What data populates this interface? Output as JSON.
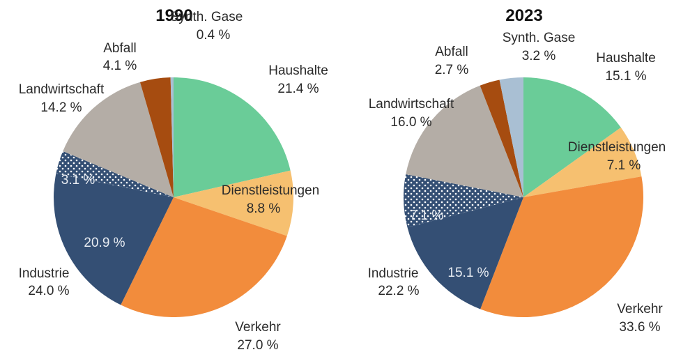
{
  "chart_data": [
    {
      "type": "pie",
      "title": "1990",
      "categories": [
        "Haushalte",
        "Dienstleistungen",
        "Verkehr",
        "Industrie",
        "Landwirtschaft",
        "Abfall",
        "Synth. Gase"
      ],
      "values": [
        21.4,
        8.8,
        27.0,
        24.0,
        14.2,
        4.1,
        0.4
      ],
      "value_labels": [
        "21.4 %",
        "8.8 %",
        "27.0 %",
        "24.0 %",
        "14.2 %",
        "4.1 %",
        "0.4 %"
      ],
      "sub_slices": [
        {
          "parent": "Industrie",
          "parts": [
            {
              "value": 20.9,
              "label": "20.9 %",
              "pattern": "solid"
            },
            {
              "value": 3.1,
              "label": "3.1 %",
              "pattern": "dotted"
            }
          ]
        }
      ],
      "start": "top",
      "direction": "clockwise"
    },
    {
      "type": "pie",
      "title": "2023",
      "categories": [
        "Haushalte",
        "Dienstleistungen",
        "Verkehr",
        "Industrie",
        "Landwirtschaft",
        "Abfall",
        "Synth. Gase"
      ],
      "values": [
        15.1,
        7.1,
        33.6,
        22.2,
        16.0,
        2.7,
        3.2
      ],
      "value_labels": [
        "15.1 %",
        "7.1 %",
        "33.6 %",
        "22.2 %",
        "16.0 %",
        "2.7 %",
        "3.2 %"
      ],
      "sub_slices": [
        {
          "parent": "Industrie",
          "parts": [
            {
              "value": 15.1,
              "label": "15.1 %",
              "pattern": "solid"
            },
            {
              "value": 7.1,
              "label": "7.1 %",
              "pattern": "dotted"
            }
          ]
        }
      ],
      "start": "top",
      "direction": "clockwise"
    }
  ],
  "colors": {
    "Haushalte": "#6acc98",
    "Dienstleistungen": "#f6c070",
    "Verkehr": "#f28c3c",
    "Industrie": "#344f74",
    "Landwirtschaft": "#b4ada6",
    "Abfall": "#a64c10",
    "Synth. Gase": "#a9bfd3"
  }
}
